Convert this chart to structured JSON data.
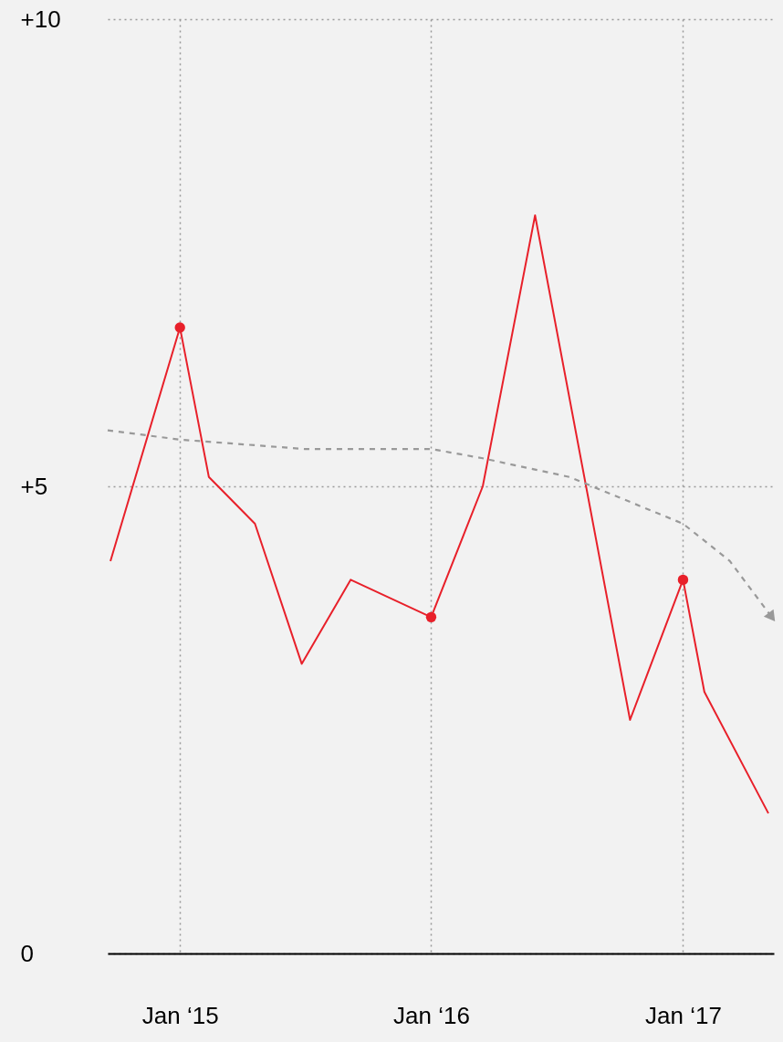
{
  "chart_data": {
    "type": "line",
    "x": [
      "2014-09-22",
      "2015-01-01",
      "2015-02-12",
      "2015-04-20",
      "2015-06-27",
      "2015-09-06",
      "2016-01-01",
      "2016-03-16",
      "2016-05-31",
      "2016-10-16",
      "2017-01-01",
      "2017-02-01",
      "2017-05-05"
    ],
    "series": [
      {
        "color": "#e8202a",
        "values": [
          4.2,
          6.7,
          5.1,
          4.6,
          3.1,
          4.0,
          3.6,
          5.0,
          7.9,
          2.5,
          4.0,
          2.8,
          1.5
        ]
      },
      {
        "type": "scatter",
        "marker": "circle",
        "color": "#e8202a",
        "x": [
          "2015-01-01",
          "2016-01-01",
          "2017-01-01"
        ],
        "values": [
          6.7,
          3.6,
          4.0
        ]
      },
      {
        "type": "line",
        "line_style": "dashed",
        "color": "#999999",
        "x": [
          "2014-09-18",
          "2015-01-01",
          "2015-07-01",
          "2016-01-01",
          "2016-03-16",
          "2016-07-20",
          "2017-01-01",
          "2017-03-10",
          "2017-05-10"
        ],
        "values": [
          5.6,
          5.5,
          5.4,
          5.4,
          5.3,
          5.1,
          4.6,
          4.2,
          3.6
        ]
      }
    ],
    "xlim": [
      "2014-09-18",
      "2017-05-13"
    ],
    "xticks": [
      {
        "value": "2015-01-01",
        "label": "Jan ‘15"
      },
      {
        "value": "2016-01-01",
        "label": "Jan ‘16"
      },
      {
        "value": "2017-01-01",
        "label": "Jan ‘17"
      }
    ],
    "ylim": [
      0,
      10
    ],
    "yticks": [
      0,
      {
        "value": 5,
        "label": "+5"
      },
      {
        "value": 10,
        "label": "+10"
      }
    ],
    "grid": true
  }
}
